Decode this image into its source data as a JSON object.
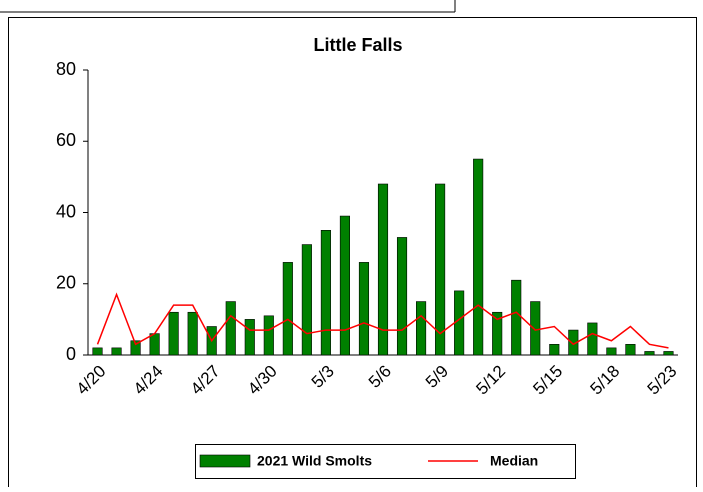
{
  "chart_data": {
    "type": "bar-line",
    "title": "Little Falls",
    "categories": [
      "4/20",
      null,
      null,
      "4/24",
      null,
      null,
      "4/27",
      null,
      null,
      "4/30",
      null,
      null,
      "5/3",
      null,
      null,
      "5/6",
      null,
      null,
      "5/9",
      null,
      null,
      "5/12",
      null,
      null,
      "5/15",
      null,
      null,
      "5/18",
      null,
      null,
      "5/23"
    ],
    "series": [
      {
        "name": "2021 Wild Smolts",
        "type": "bar",
        "color": "#008000",
        "values": [
          2,
          2,
          4,
          6,
          12,
          12,
          8,
          15,
          10,
          11,
          26,
          31,
          35,
          39,
          26,
          48,
          33,
          15,
          48,
          18,
          55,
          12,
          21,
          15,
          3,
          7,
          9,
          2,
          3,
          1,
          1
        ]
      },
      {
        "name": "Median",
        "type": "line",
        "color": "#ff0000",
        "values": [
          3,
          17,
          3,
          6,
          14,
          14,
          4,
          11,
          7,
          7,
          10,
          6,
          7,
          7,
          9,
          7,
          7,
          11,
          6,
          10,
          14,
          10,
          12,
          7,
          8,
          3,
          6,
          4,
          8,
          3,
          2
        ]
      }
    ],
    "ylim": [
      0,
      80
    ],
    "yticks": [
      0,
      20,
      40,
      60,
      80
    ],
    "legend": "bottom"
  }
}
